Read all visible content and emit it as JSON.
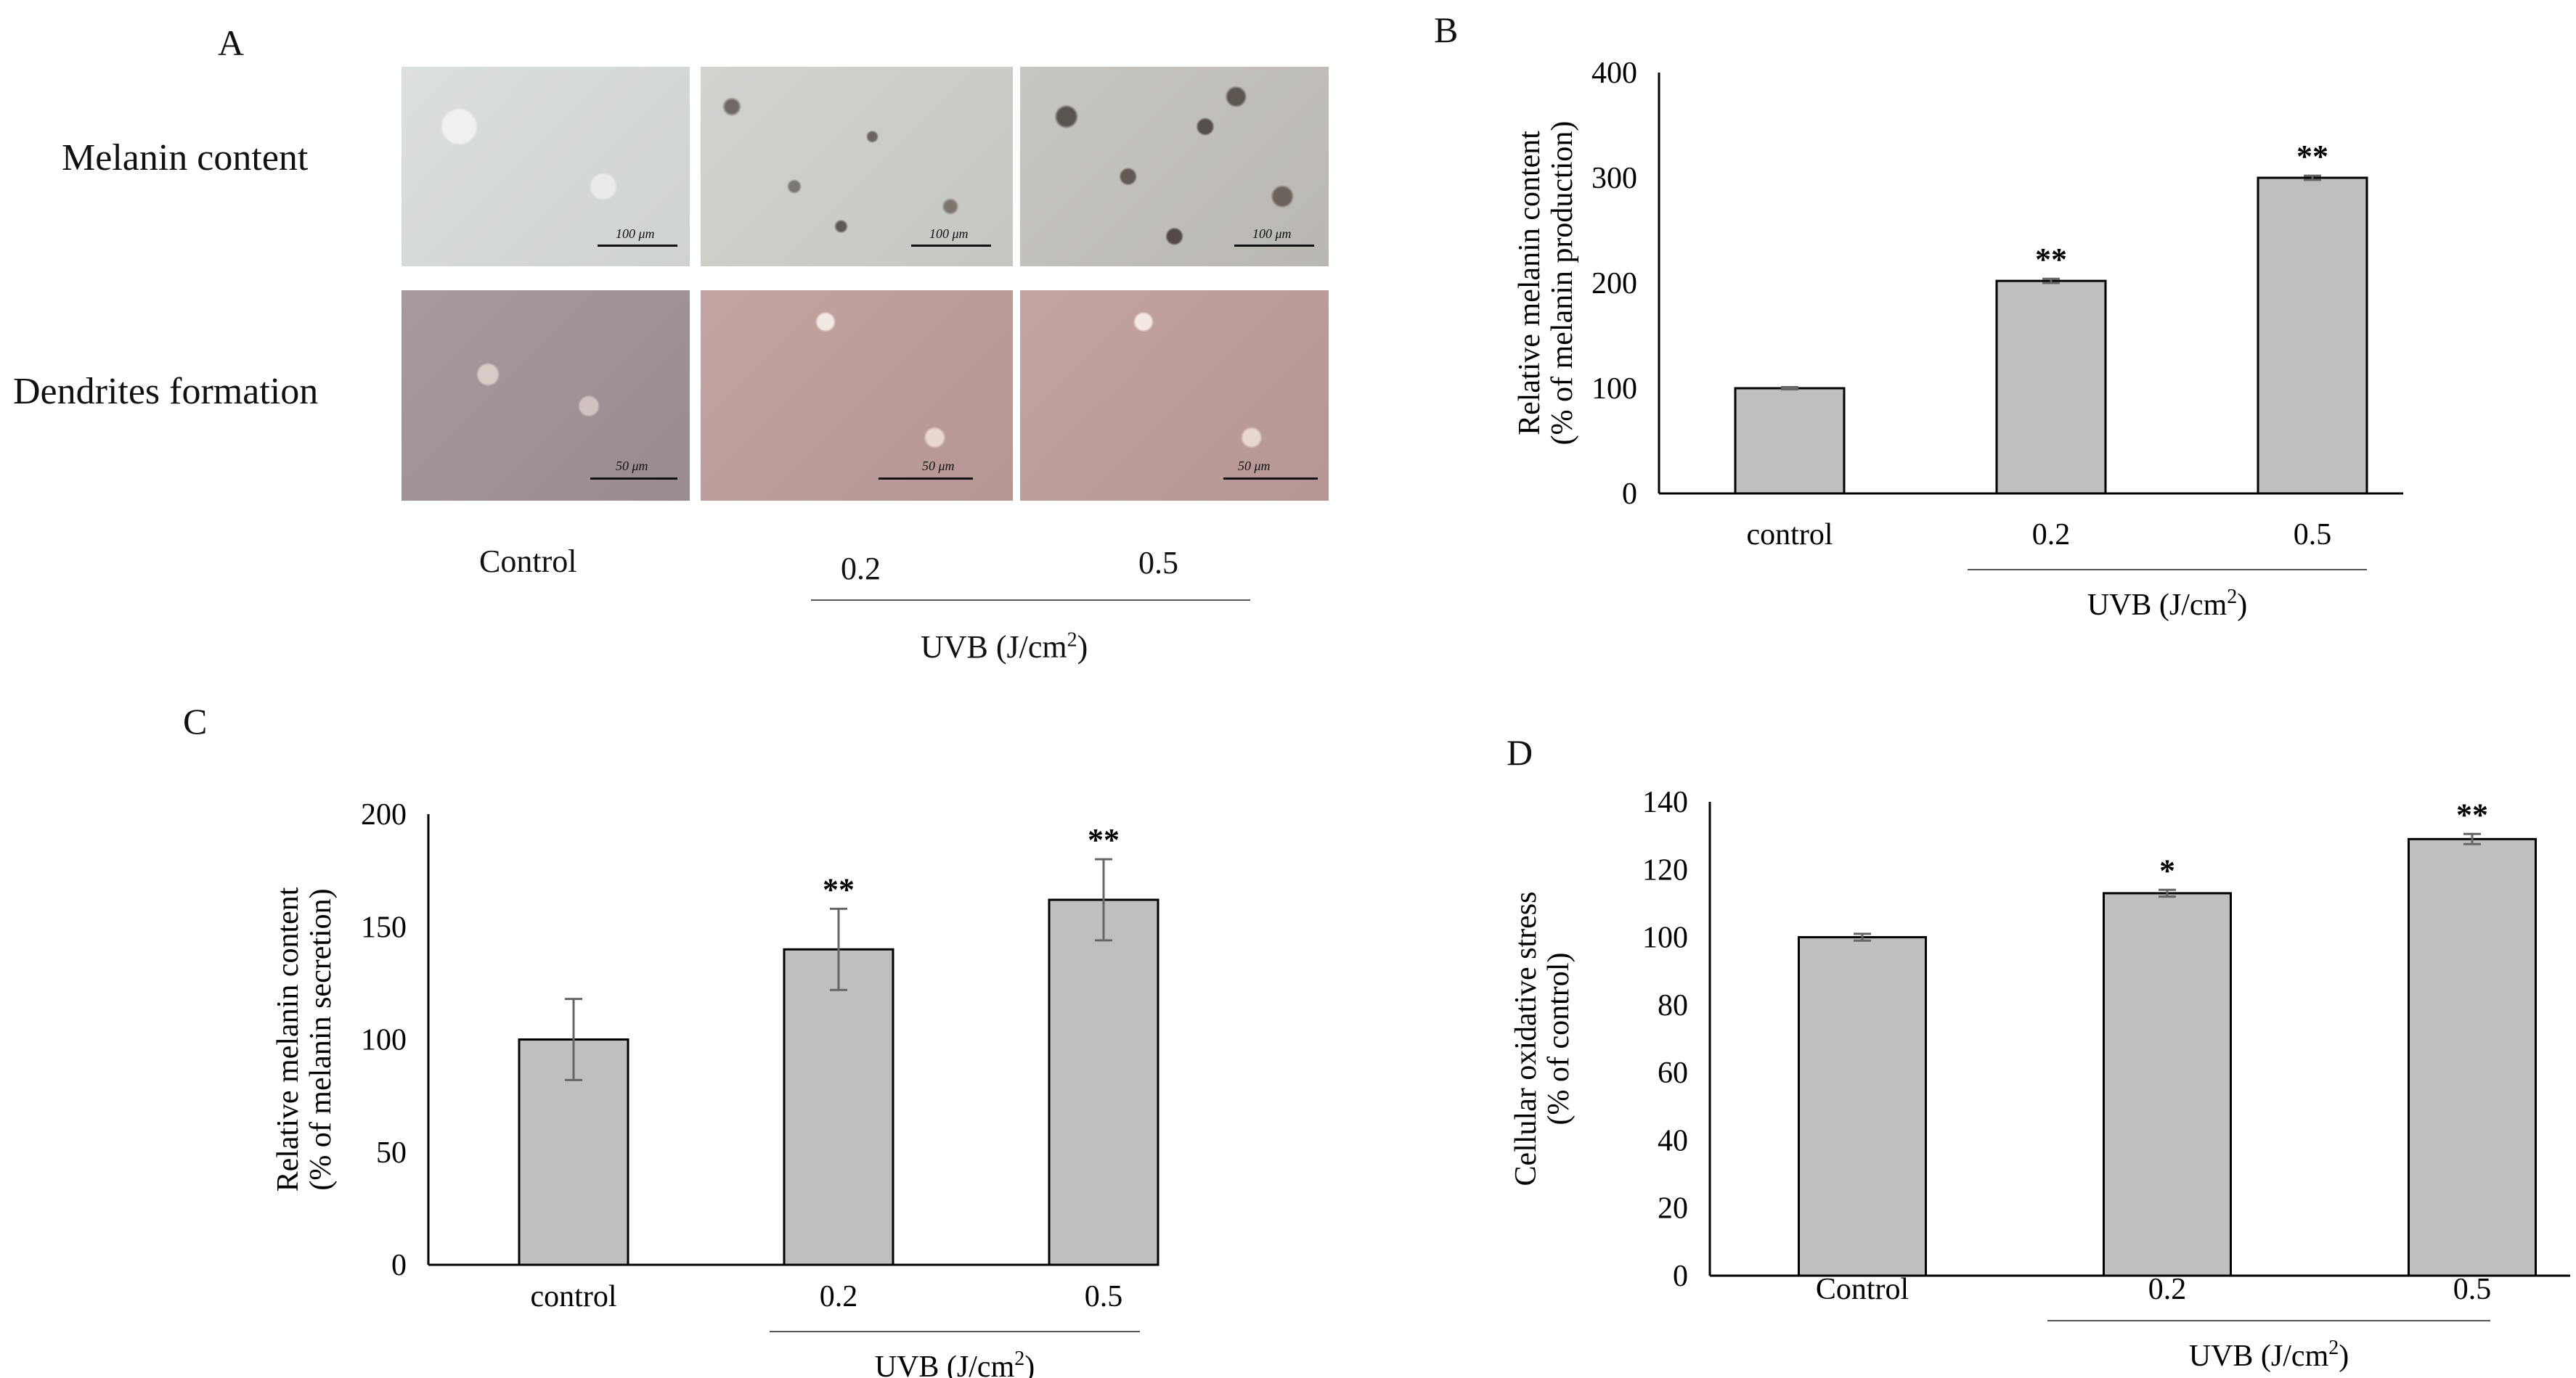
{
  "panelA": {
    "letter": "A",
    "row_labels": [
      "Melanin content",
      "Dendrites formation"
    ],
    "scale_bars": [
      "100 μm",
      "100 μm",
      "100 μm",
      "50 μm",
      "50 μm",
      "50 μm"
    ],
    "conditions": [
      "Control",
      "0.2",
      "0.5"
    ],
    "uvb_label": "UVB  (J/cm",
    "uvb_sup": "2",
    "uvb_close": ")"
  },
  "chart_data": [
    {
      "panel": "B",
      "type": "bar",
      "categories": [
        "control",
        "0.2",
        "0.5"
      ],
      "values": [
        100,
        202,
        300
      ],
      "errors": [
        1,
        2,
        2
      ],
      "significance": [
        "",
        "**",
        "**"
      ],
      "ylabel_line1": "Relative melanin content",
      "ylabel_line2": "(% of melanin production)",
      "ylim": [
        0,
        400
      ],
      "yticks": [
        0,
        100,
        200,
        300,
        400
      ],
      "group_label": "UVB  (J/cm",
      "group_sup": "2",
      "group_close": ")",
      "bar_color": "#bfbfbf"
    },
    {
      "panel": "C",
      "type": "bar",
      "categories": [
        "control",
        "0.2",
        "0.5"
      ],
      "values": [
        100,
        140,
        162
      ],
      "errors": [
        18,
        18,
        18
      ],
      "significance": [
        "",
        "**",
        "**"
      ],
      "ylabel_line1": "Relative melanin content",
      "ylabel_line2": "(% of melanin secretion)",
      "ylim": [
        0,
        200
      ],
      "yticks": [
        0,
        50,
        100,
        150,
        200
      ],
      "group_label": "UVB  (J/cm",
      "group_sup": "2",
      "group_close": ")",
      "bar_color": "#bfbfbf"
    },
    {
      "panel": "D",
      "type": "bar",
      "categories": [
        "Control",
        "0.2",
        "0.5"
      ],
      "values": [
        100,
        113,
        129
      ],
      "errors": [
        1,
        1,
        1.5
      ],
      "significance": [
        "",
        "*",
        "**"
      ],
      "ylabel_line1": "Cellular oxidative stress",
      "ylabel_line2": "(% of control)",
      "ylim": [
        0,
        140
      ],
      "yticks": [
        0,
        20,
        40,
        60,
        80,
        100,
        120,
        140
      ],
      "group_label": "UVB (J/cm",
      "group_sup": "2",
      "group_close": ")",
      "bar_color": "#bfbfbf"
    }
  ]
}
